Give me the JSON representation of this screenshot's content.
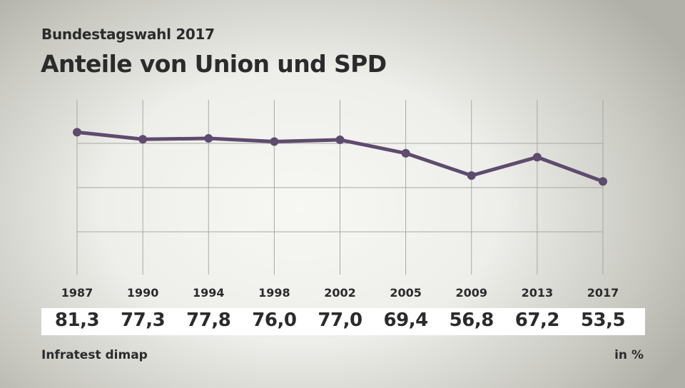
{
  "header": {
    "subtitle": "Bundestagswahl 2017",
    "title": "Anteile von Union und SPD"
  },
  "footer": {
    "source": "Infratest dimap",
    "unit": "in %"
  },
  "colors": {
    "line": "#5e4b6e",
    "grid": "#a8a8a4"
  },
  "chart_data": {
    "type": "line",
    "title": "Anteile von Union und SPD",
    "categories": [
      "1987",
      "1990",
      "1994",
      "1998",
      "2002",
      "2005",
      "2009",
      "2013",
      "2017"
    ],
    "values": [
      81.3,
      77.3,
      77.8,
      76.0,
      77.0,
      69.4,
      56.8,
      67.2,
      53.5
    ],
    "value_labels": [
      "81,3",
      "77,3",
      "77,8",
      "76,0",
      "77,0",
      "69,4",
      "56,8",
      "67,2",
      "53,5"
    ],
    "ylim": [
      0,
      100
    ],
    "y_gridlines": [
      25,
      50,
      75
    ],
    "grid": true,
    "xlabel": "",
    "ylabel": ""
  }
}
